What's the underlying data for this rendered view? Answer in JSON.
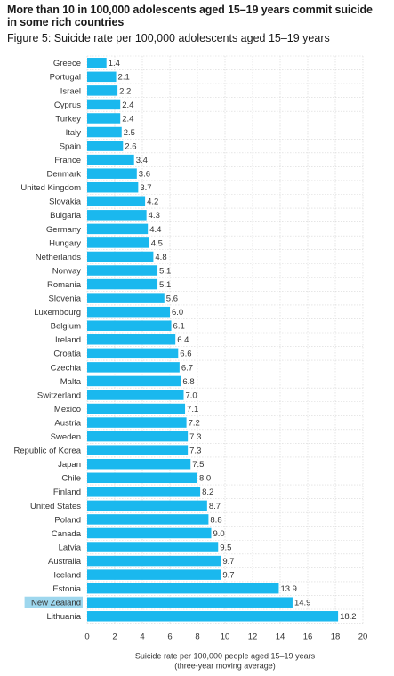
{
  "title": "More than 10 in 100,000 adolescents aged 15–19 years commit suicide in some rich countries",
  "subtitle": "Figure 5: Suicide rate per 100,000 adolescents aged 15–19 years",
  "colors": {
    "bar": "#1ab8ee",
    "highlight_label_bg": "#9ed7ee",
    "grid": "#d6d6d6"
  },
  "chart_data": {
    "type": "bar",
    "orientation": "horizontal",
    "categories": [
      "Greece",
      "Portugal",
      "Israel",
      "Cyprus",
      "Turkey",
      "Italy",
      "Spain",
      "France",
      "Denmark",
      "United Kingdom",
      "Slovakia",
      "Bulgaria",
      "Germany",
      "Hungary",
      "Netherlands",
      "Norway",
      "Romania",
      "Slovenia",
      "Luxembourg",
      "Belgium",
      "Ireland",
      "Croatia",
      "Czechia",
      "Malta",
      "Switzerland",
      "Mexico",
      "Austria",
      "Sweden",
      "Republic of Korea",
      "Japan",
      "Chile",
      "Finland",
      "United States",
      "Poland",
      "Canada",
      "Latvia",
      "Australia",
      "Iceland",
      "Estonia",
      "New Zealand",
      "Lithuania"
    ],
    "values": [
      1.4,
      2.1,
      2.2,
      2.4,
      2.4,
      2.5,
      2.6,
      3.4,
      3.6,
      3.7,
      4.2,
      4.3,
      4.4,
      4.5,
      4.8,
      5.1,
      5.1,
      5.6,
      6.0,
      6.1,
      6.4,
      6.6,
      6.7,
      6.8,
      7.0,
      7.1,
      7.2,
      7.3,
      7.3,
      7.5,
      8.0,
      8.2,
      8.7,
      8.8,
      9.0,
      9.5,
      9.7,
      9.7,
      13.9,
      14.9,
      18.2
    ],
    "value_labels": [
      "1.4",
      "2.1",
      "2.2",
      "2.4",
      "2.4",
      "2.5",
      "2.6",
      "3.4",
      "3.6",
      "3.7",
      "4.2",
      "4.3",
      "4.4",
      "4.5",
      "4.8",
      "5.1",
      "5.1",
      "5.6",
      "6.0",
      "6.1",
      "6.4",
      "6.6",
      "6.7",
      "6.8",
      "7.0",
      "7.1",
      "7.2",
      "7.3",
      "7.3",
      "7.5",
      "8.0",
      "8.2",
      "8.7",
      "8.8",
      "9.0",
      "9.5",
      "9.7",
      "9.7",
      "13.9",
      "14.9",
      "18.2"
    ],
    "highlighted_category": "New Zealand",
    "xlim": [
      0,
      20
    ],
    "xticks": [
      "0",
      "2",
      "4",
      "6",
      "8",
      "10",
      "12",
      "14",
      "16",
      "18",
      "20"
    ],
    "xlabel": "Suicide rate per 100,000 people aged 15–19 years",
    "xlabel_note": "(three-year moving average)",
    "grid": true,
    "legend": "none"
  }
}
